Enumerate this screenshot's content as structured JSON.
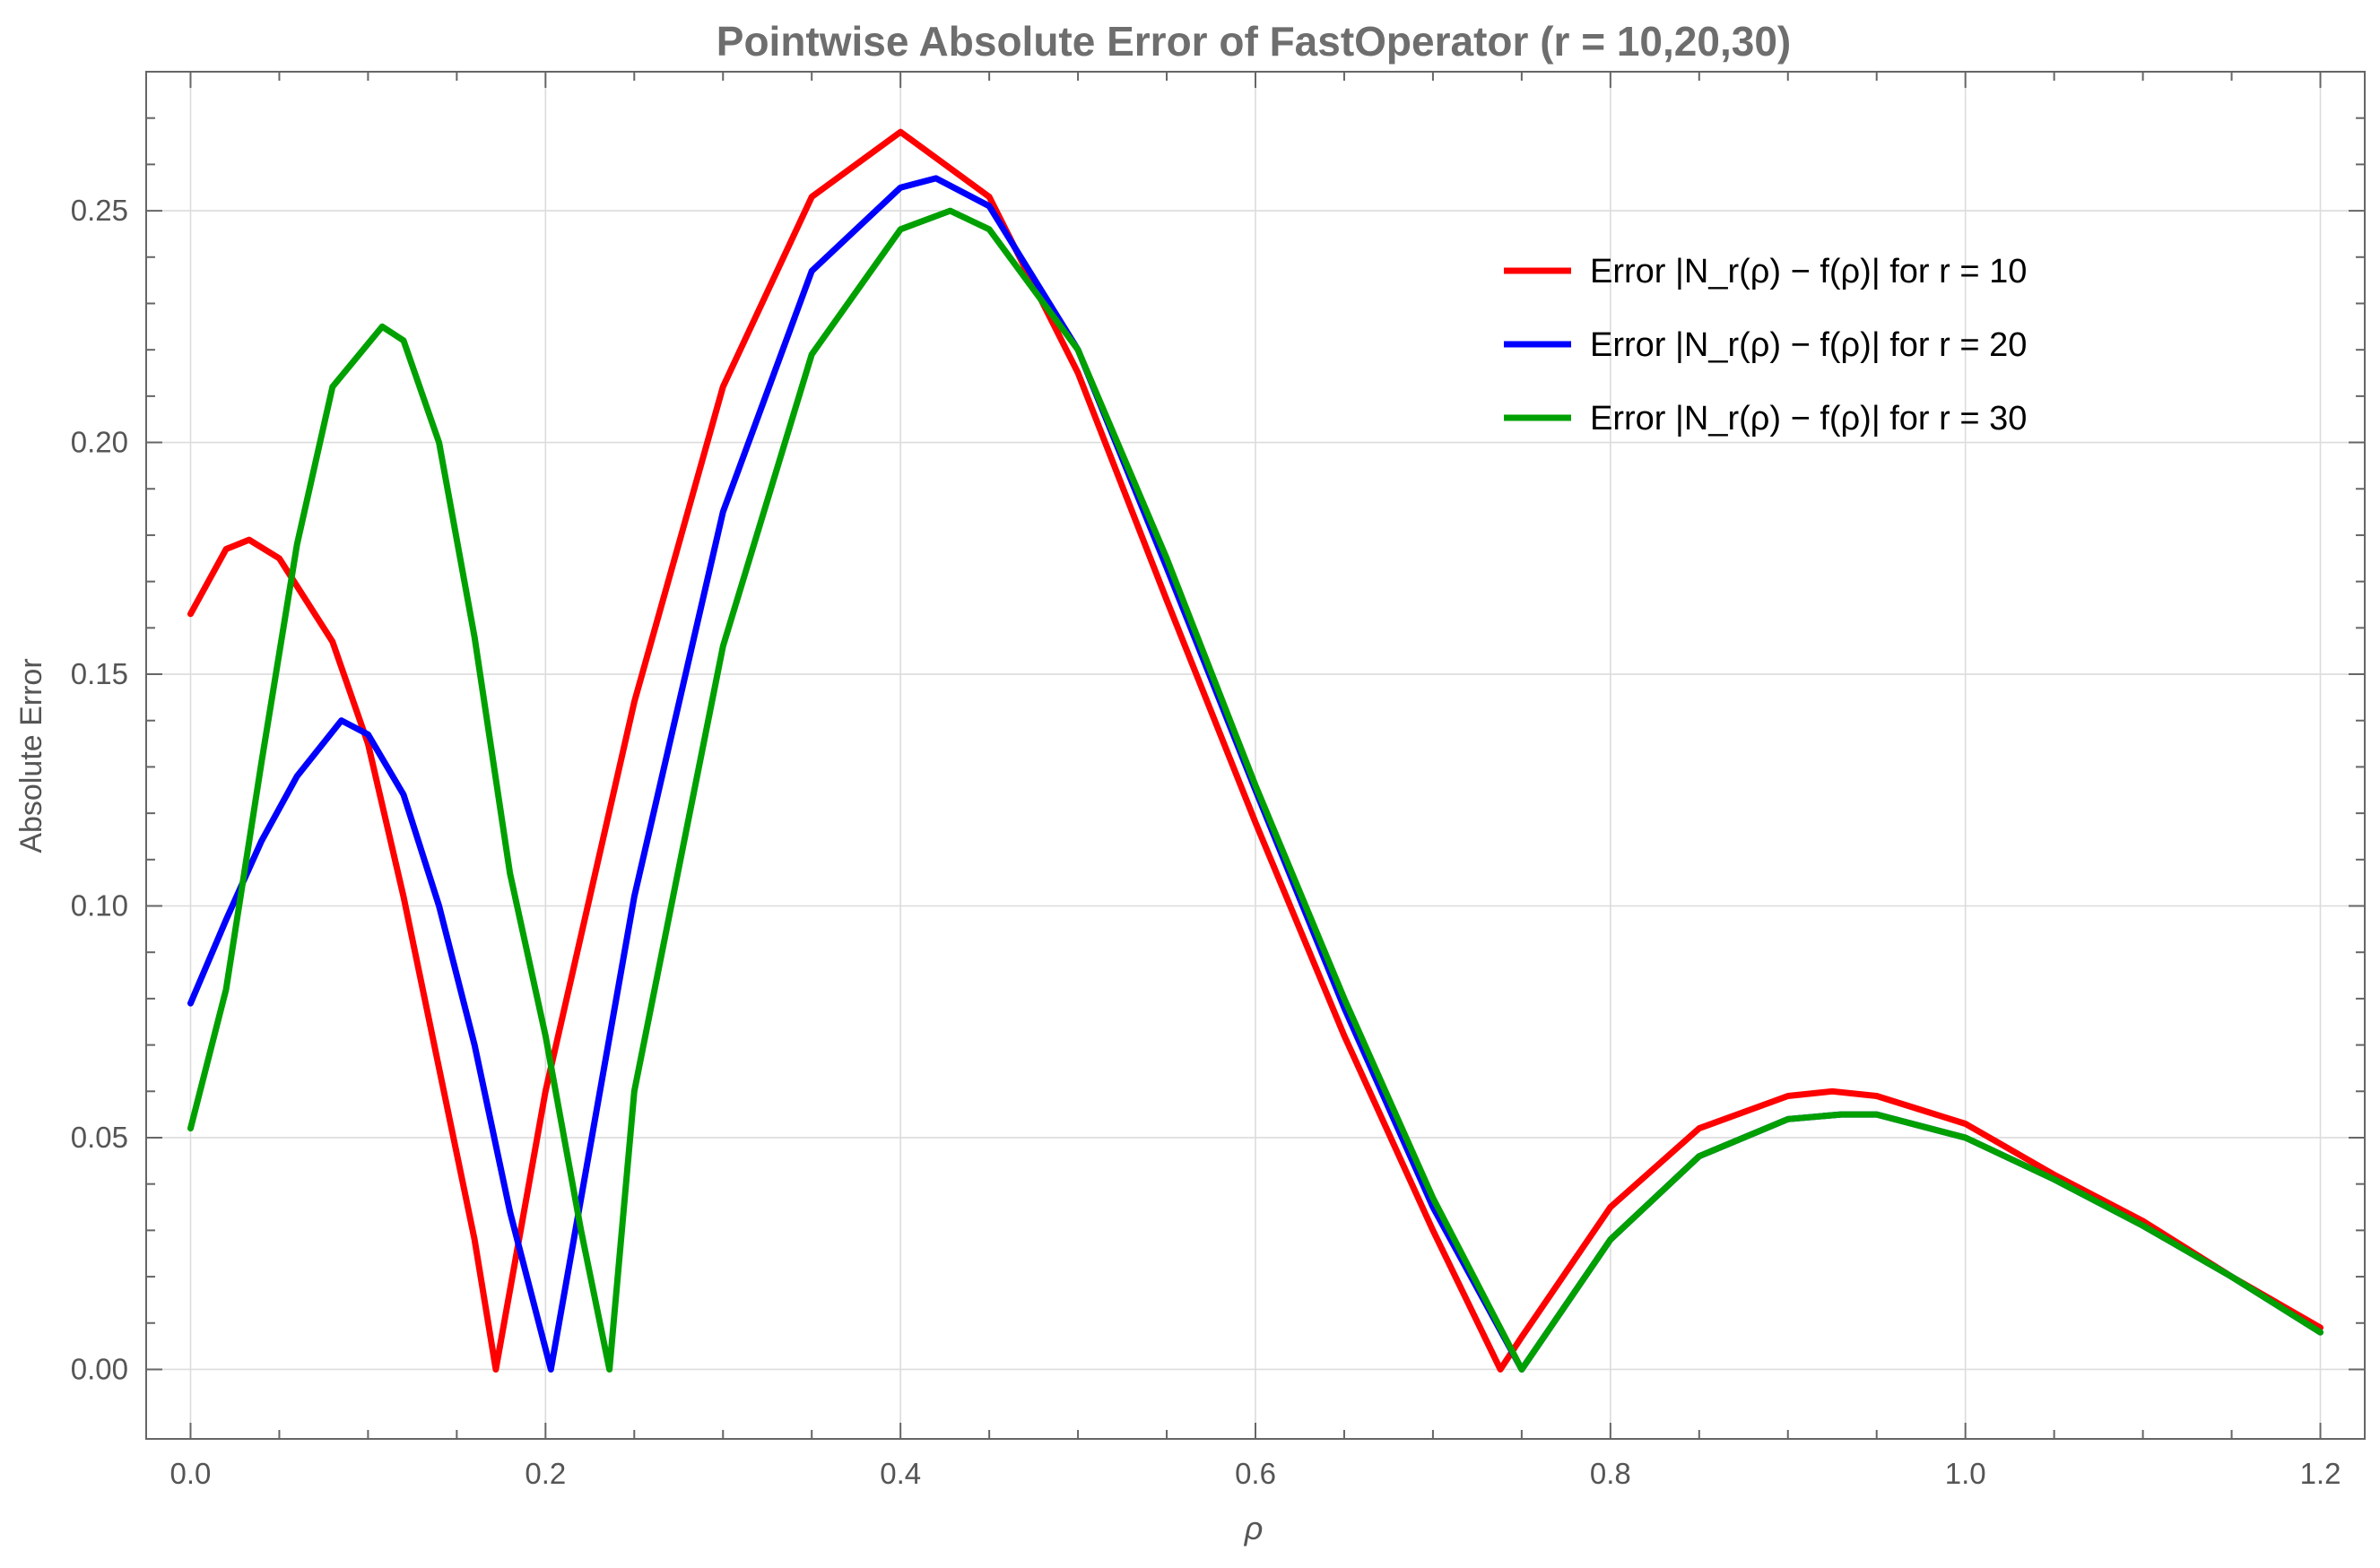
{
  "chart_data": {
    "type": "line",
    "title": "Pointwise Absolute Error of FastOperator (r = 10,20,30)",
    "xlabel": "ρ",
    "ylabel": "Absolute Error",
    "xlim": [
      -0.025,
      1.225
    ],
    "ylim": [
      -0.015,
      0.28
    ],
    "x_ticks": [
      "0.0",
      "0.2",
      "0.4",
      "0.6",
      "0.8",
      "1.0",
      "1.2"
    ],
    "y_ticks": [
      "0.00",
      "0.05",
      "0.10",
      "0.15",
      "0.20",
      "0.25"
    ],
    "grid": true,
    "legend_position": "top-right",
    "series": [
      {
        "name": "Error |N_r(ρ) − f(ρ)| for r = 10",
        "color": "#ff0000",
        "x": [
          0.0,
          0.02,
          0.033,
          0.05,
          0.08,
          0.1,
          0.12,
          0.14,
          0.16,
          0.172,
          0.2,
          0.25,
          0.3,
          0.35,
          0.4,
          0.45,
          0.5,
          0.55,
          0.6,
          0.65,
          0.7,
          0.738,
          0.75,
          0.8,
          0.85,
          0.9,
          0.925,
          0.95,
          1.0,
          1.05,
          1.1,
          1.15,
          1.2
        ],
        "values": [
          0.163,
          0.177,
          0.179,
          0.175,
          0.157,
          0.135,
          0.102,
          0.065,
          0.028,
          0.0,
          0.06,
          0.144,
          0.212,
          0.253,
          0.267,
          0.253,
          0.215,
          0.166,
          0.118,
          0.072,
          0.03,
          0.0,
          0.007,
          0.035,
          0.052,
          0.059,
          0.06,
          0.059,
          0.053,
          0.042,
          0.032,
          0.02,
          0.009
        ]
      },
      {
        "name": "Error |N_r(ρ) − f(ρ)| for r = 20",
        "color": "#0000ff",
        "x": [
          0.0,
          0.02,
          0.04,
          0.06,
          0.085,
          0.1,
          0.12,
          0.14,
          0.16,
          0.18,
          0.203,
          0.25,
          0.3,
          0.35,
          0.4,
          0.42,
          0.45,
          0.5,
          0.55,
          0.6,
          0.65,
          0.7,
          0.75,
          0.8,
          0.85,
          0.9,
          0.93,
          0.95,
          1.0,
          1.05,
          1.1,
          1.15,
          1.2
        ],
        "values": [
          0.079,
          0.097,
          0.114,
          0.128,
          0.14,
          0.137,
          0.124,
          0.1,
          0.07,
          0.034,
          0.0,
          0.102,
          0.185,
          0.237,
          0.255,
          0.257,
          0.251,
          0.22,
          0.173,
          0.125,
          0.078,
          0.035,
          0.0,
          0.028,
          0.046,
          0.054,
          0.055,
          0.055,
          0.05,
          0.041,
          0.031,
          0.02,
          0.008
        ]
      },
      {
        "name": "Error |N_r(ρ) − f(ρ)| for r = 30",
        "color": "#00a000",
        "x": [
          0.0,
          0.02,
          0.04,
          0.06,
          0.08,
          0.108,
          0.12,
          0.14,
          0.16,
          0.18,
          0.2,
          0.22,
          0.236,
          0.25,
          0.3,
          0.35,
          0.4,
          0.428,
          0.45,
          0.5,
          0.55,
          0.6,
          0.65,
          0.7,
          0.75,
          0.8,
          0.85,
          0.9,
          0.93,
          0.95,
          1.0,
          1.05,
          1.1,
          1.15,
          1.2
        ],
        "values": [
          0.052,
          0.082,
          0.131,
          0.178,
          0.212,
          0.225,
          0.222,
          0.2,
          0.158,
          0.107,
          0.072,
          0.03,
          0.0,
          0.06,
          0.156,
          0.219,
          0.246,
          0.25,
          0.246,
          0.22,
          0.175,
          0.126,
          0.08,
          0.037,
          0.0,
          0.028,
          0.046,
          0.054,
          0.055,
          0.055,
          0.05,
          0.041,
          0.031,
          0.02,
          0.008
        ]
      }
    ]
  }
}
